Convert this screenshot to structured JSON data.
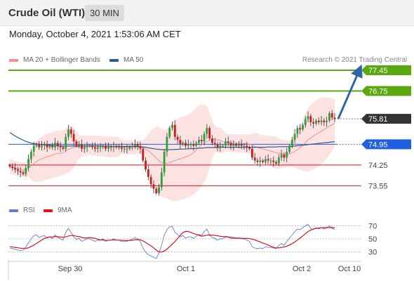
{
  "header": {
    "title": "Crude Oil (WTI)",
    "timeframe": "30 MIN"
  },
  "datetime": "Monday, October 4, 2021 1:53:06 AM CET",
  "legend": {
    "bollinger": {
      "label": "MA 20 + Bollinger Bands",
      "color": "#f4908e"
    },
    "ma50": {
      "label": "MA 50",
      "color": "#2e5a94"
    }
  },
  "copyright": "Research © 2021 Trading Central",
  "rsi_legend": {
    "rsi": {
      "label": "RSI",
      "color": "#5b7fd6"
    },
    "ma9": {
      "label": "9MA",
      "color": "#e0111b"
    }
  },
  "chart_data": [
    {
      "type": "candlestick",
      "title": "Crude Oil (WTI)",
      "ylim": [
        73.18,
        77.57
      ],
      "x_ticks": [
        "Sep 30",
        "Oct 1",
        "Oct 2",
        "Oct 10"
      ],
      "current_price": 75.81,
      "target_arrow": {
        "from": 75.81,
        "to": 77.45
      },
      "levels": [
        {
          "value": 77.45,
          "label": "77.45",
          "kind": "resistance",
          "color": "#5aa80f"
        },
        {
          "value": 76.75,
          "label": "76.75",
          "kind": "resistance",
          "color": "#5aa80f"
        },
        {
          "value": 75.81,
          "label": "75.81",
          "kind": "last",
          "color": "#333333"
        },
        {
          "value": 74.95,
          "label": "74.95",
          "kind": "pivot",
          "color": "#1f5fe0"
        },
        {
          "value": 74.25,
          "label": "74.25",
          "kind": "support",
          "color": "#e0111b"
        },
        {
          "value": 73.55,
          "label": "73.55",
          "kind": "support",
          "color": "#e0111b"
        }
      ],
      "series_closes": [
        74.2,
        74.15,
        74.1,
        74.05,
        74.0,
        73.95,
        74.15,
        74.45,
        74.7,
        74.9,
        74.95,
        74.85,
        74.9,
        74.95,
        74.85,
        74.9,
        74.85,
        75.0,
        74.9,
        74.85,
        74.8,
        75.2,
        75.45,
        75.3,
        75.05,
        74.9,
        74.95,
        74.8,
        74.85,
        74.9,
        74.9,
        74.85,
        74.8,
        74.85,
        74.85,
        74.9,
        74.8,
        74.85,
        74.85,
        74.9,
        74.85,
        74.85,
        74.8,
        74.8,
        74.8,
        74.85,
        74.9,
        74.95,
        74.9,
        74.8,
        74.4,
        74.1,
        73.85,
        73.6,
        73.45,
        73.3,
        73.5,
        74.0,
        74.7,
        75.2,
        75.5,
        75.6,
        75.2,
        75.1,
        74.95,
        75.0,
        74.9,
        74.95,
        74.95,
        74.9,
        75.0,
        75.1,
        75.05,
        75.3,
        75.5,
        75.15,
        75.0,
        74.95,
        74.85,
        74.9,
        74.9,
        75.05,
        75.0,
        74.9,
        74.95,
        74.9,
        74.95,
        74.9,
        74.9,
        74.85,
        74.8,
        74.5,
        74.4,
        74.35,
        74.4,
        74.35,
        74.45,
        74.4,
        74.4,
        74.35,
        74.3,
        74.5,
        74.6,
        74.5,
        74.7,
        74.9,
        75.1,
        75.3,
        75.5,
        75.45,
        75.6,
        75.8,
        75.9,
        75.7,
        75.65,
        75.75,
        75.7,
        75.75,
        75.7,
        75.75,
        76.0,
        75.85,
        75.8
      ],
      "ma20": [
        74.2,
        74.18,
        74.15,
        74.13,
        74.11,
        74.09,
        74.09,
        74.15,
        74.22,
        74.3,
        74.37,
        74.42,
        74.46,
        74.5,
        74.53,
        74.55,
        74.58,
        74.62,
        74.64,
        74.65,
        74.67,
        74.72,
        74.78,
        74.82,
        74.84,
        74.86,
        74.88,
        74.89,
        74.9,
        74.91,
        74.92,
        74.91,
        74.9,
        74.9,
        74.89,
        74.88,
        74.87,
        74.86,
        74.86,
        74.86,
        74.86,
        74.86,
        74.86,
        74.85,
        74.85,
        74.85,
        74.85,
        74.85,
        74.86,
        74.86,
        74.84,
        74.79,
        74.73,
        74.66,
        74.57,
        74.48,
        74.4,
        74.33,
        74.3,
        74.3,
        74.33,
        74.37,
        74.4,
        74.43,
        74.46,
        74.49,
        74.52,
        74.56,
        74.6,
        74.67,
        74.76,
        74.85,
        74.92,
        74.99,
        75.05,
        75.08,
        75.11,
        75.12,
        75.1,
        75.08,
        75.04,
        75.01,
        75.0,
        74.99,
        74.98,
        74.98,
        74.98,
        74.98,
        74.98,
        74.97,
        74.96,
        74.92,
        74.88,
        74.85,
        74.82,
        74.79,
        74.77,
        74.75,
        74.72,
        74.7,
        74.67,
        74.64,
        74.63,
        74.62,
        74.62,
        74.63,
        74.66,
        74.71,
        74.77,
        74.84,
        74.92,
        75.01,
        75.1,
        75.17,
        75.23,
        75.28,
        75.34,
        75.4,
        75.45,
        75.5,
        75.56,
        75.61,
        75.66
      ],
      "ma50": [
        75.35,
        75.29,
        75.23,
        75.18,
        75.13,
        75.09,
        75.05,
        75.02,
        74.99,
        74.97,
        74.96,
        74.95,
        74.94,
        74.93,
        74.93,
        74.92,
        74.91,
        74.9,
        74.9,
        74.89,
        74.89,
        74.89,
        74.89,
        74.89,
        74.89,
        74.89,
        74.89,
        74.89,
        74.89,
        74.89,
        74.89,
        74.89,
        74.89,
        74.89,
        74.89,
        74.89,
        74.89,
        74.89,
        74.88,
        74.88,
        74.88,
        74.88,
        74.88,
        74.88,
        74.88,
        74.88,
        74.88,
        74.88,
        74.88,
        74.87,
        74.86,
        74.85,
        74.83,
        74.82,
        74.8,
        74.79,
        74.78,
        74.77,
        74.77,
        74.77,
        74.77,
        74.77,
        74.78,
        74.78,
        74.79,
        74.79,
        74.79,
        74.8,
        74.8,
        74.8,
        74.81,
        74.82,
        74.82,
        74.83,
        74.84,
        74.84,
        74.84,
        74.84,
        74.84,
        74.85,
        74.85,
        74.85,
        74.85,
        74.85,
        74.85,
        74.85,
        74.85,
        74.85,
        74.85,
        74.85,
        74.85,
        74.85,
        74.85,
        74.85,
        74.85,
        74.85,
        74.85,
        74.86,
        74.86,
        74.86,
        74.86,
        74.87,
        74.87,
        74.87,
        74.87,
        74.88,
        74.88,
        74.89,
        74.9,
        74.91,
        74.92,
        74.93,
        74.94,
        74.95,
        74.96,
        74.97,
        74.98,
        74.99,
        75.0,
        75.01,
        75.02,
        75.03,
        75.04
      ]
    },
    {
      "type": "line",
      "title": "RSI",
      "ylim": [
        20,
        80
      ],
      "y_ticks": [
        70,
        50,
        30
      ],
      "series": [
        {
          "name": "RSI",
          "color": "#5b7fd6",
          "values": [
            36,
            35,
            34,
            33,
            32,
            33,
            38,
            44,
            50,
            55,
            56,
            52,
            54,
            55,
            51,
            53,
            50,
            56,
            52,
            50,
            48,
            60,
            66,
            60,
            53,
            49,
            51,
            46,
            48,
            50,
            50,
            48,
            46,
            48,
            48,
            50,
            46,
            48,
            48,
            50,
            48,
            48,
            46,
            46,
            46,
            48,
            50,
            52,
            50,
            46,
            36,
            30,
            26,
            24,
            22,
            20,
            28,
            40,
            56,
            64,
            68,
            69,
            60,
            57,
            53,
            55,
            51,
            53,
            53,
            51,
            54,
            57,
            55,
            61,
            65,
            56,
            52,
            51,
            48,
            50,
            50,
            54,
            53,
            50,
            51,
            50,
            51,
            50,
            50,
            48,
            46,
            38,
            36,
            35,
            36,
            35,
            38,
            37,
            37,
            36,
            35,
            40,
            43,
            40,
            46,
            51,
            56,
            61,
            65,
            64,
            67,
            70,
            72,
            66,
            64,
            67,
            65,
            67,
            65,
            67,
            70,
            66,
            64
          ]
        },
        {
          "name": "9MA",
          "color": "#e0111b",
          "values": [
            38,
            37.5,
            37,
            36.4,
            35.8,
            35.3,
            35.4,
            36.6,
            38.4,
            40.5,
            43,
            45.6,
            48.3,
            50.6,
            52,
            53,
            52.9,
            53.6,
            53.2,
            52.7,
            52.3,
            53.1,
            54.2,
            55,
            55,
            54,
            53.6,
            52.3,
            51.2,
            51.5,
            52,
            51.5,
            50.7,
            49.4,
            48.4,
            48.3,
            47.6,
            47.9,
            48.2,
            48.4,
            48.1,
            48.1,
            47.8,
            47.6,
            47.4,
            47.5,
            47.9,
            48.6,
            48.8,
            48.6,
            46.9,
            44.5,
            41.9,
            39.4,
            36.3,
            32.8,
            30.3,
            29.9,
            31.6,
            34.4,
            38,
            41.9,
            45.8,
            50.6,
            55.3,
            59.6,
            61.4,
            61.1,
            59.9,
            58,
            56.7,
            55.4,
            54.2,
            54.7,
            55.7,
            55.9,
            55.7,
            55.4,
            54.7,
            54,
            53.5,
            53.1,
            52.7,
            52.2,
            51.7,
            51.4,
            51.2,
            50.9,
            50.6,
            50.6,
            50.3,
            49.6,
            48.4,
            46.9,
            45.4,
            43.7,
            42.2,
            40.6,
            38.7,
            37.2,
            36.2,
            36.3,
            37,
            37.5,
            38.9,
            40.7,
            42.7,
            45.2,
            48.2,
            51.2,
            54.4,
            57.8,
            61.2,
            63.3,
            64.9,
            66.1,
            66.5,
            66.9,
            67.1,
            67,
            67.3,
            67.2,
            66.6
          ]
        }
      ]
    }
  ]
}
